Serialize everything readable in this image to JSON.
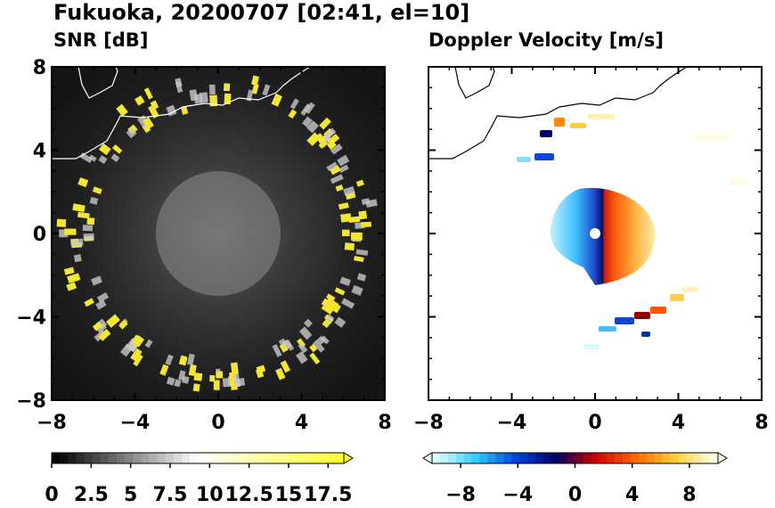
{
  "title": "Fukuoka, 20200707 [02:41, el=10]",
  "panels": {
    "left_title": "SNR [dB]",
    "right_title": "Doppler Velocity [m/s]"
  },
  "chart_data": [
    {
      "type": "heatmap",
      "title": "SNR [dB]",
      "xlim": [
        -8,
        8
      ],
      "ylim": [
        -8,
        8
      ],
      "xticks": [
        "−8",
        "−4",
        "0",
        "4",
        "8"
      ],
      "yticks": [
        "8",
        "4",
        "0",
        "−4",
        "−8"
      ],
      "colorbar": {
        "min": 0,
        "max": 18.5,
        "extend": "max",
        "tick_labels": [
          "0",
          "2.5",
          "5",
          "7.5",
          "10",
          "12.5",
          "15",
          "17.5"
        ],
        "colors": [
          "#000000",
          "#ffffff",
          "#ffff33"
        ]
      }
    },
    {
      "type": "heatmap",
      "title": "Doppler Velocity [m/s]",
      "xlim": [
        -8,
        8
      ],
      "ylim": [
        -8,
        8
      ],
      "xticks": [
        "−8",
        "−4",
        "0",
        "4",
        "8"
      ],
      "yticks": [],
      "colorbar": {
        "min": -10,
        "max": 10,
        "extend": "both",
        "tick_labels": [
          "−8",
          "−4",
          "0",
          "4",
          "8"
        ],
        "colors": [
          "#e0ffff",
          "#33ccff",
          "#0044dd",
          "#000066",
          "#cc0000",
          "#ff6600",
          "#ffcc33",
          "#ffffe6"
        ]
      }
    }
  ]
}
